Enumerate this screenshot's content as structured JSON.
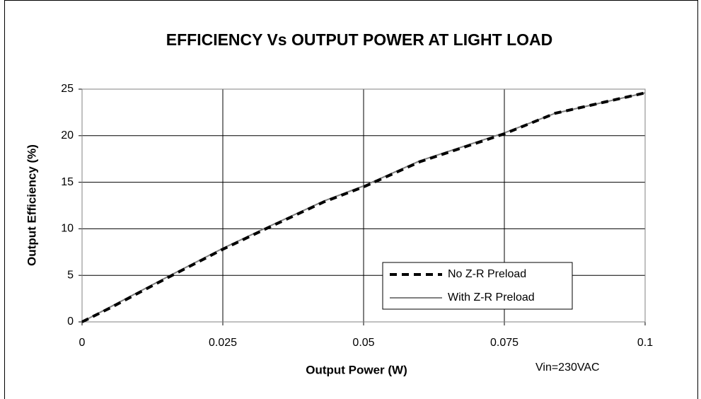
{
  "chart_data": {
    "type": "line",
    "title": "EFFICIENCY Vs OUTPUT POWER AT LIGHT LOAD",
    "x_label": "Output Power (W)",
    "y_label": "Output Efficiency (%)",
    "annotation": "Vin=230VAC",
    "x": [
      0,
      0.005,
      0.01,
      0.016,
      0.025,
      0.033,
      0.043,
      0.05,
      0.06,
      0.075,
      0.084,
      0.1
    ],
    "series": [
      {
        "name": "No Z-R Preload",
        "color": "#000000",
        "dashed": true,
        "values": [
          0,
          1.5,
          3.1,
          5.0,
          7.8,
          10.1,
          12.9,
          14.5,
          17.2,
          20.2,
          22.4,
          24.6
        ]
      },
      {
        "name": "With Z-R Preload",
        "color": "#808080",
        "dashed": false,
        "values": [
          0,
          1.6,
          3.2,
          5.1,
          7.9,
          10.2,
          13.0,
          14.6,
          17.3,
          20.3,
          22.4,
          24.6
        ]
      }
    ],
    "xlim": [
      0,
      0.1
    ],
    "xticks": [
      0,
      0.025,
      0.05,
      0.075,
      0.1
    ],
    "ylim": [
      0,
      25
    ],
    "yticks": [
      0,
      5,
      10,
      15,
      20,
      25
    ],
    "grid": true
  }
}
